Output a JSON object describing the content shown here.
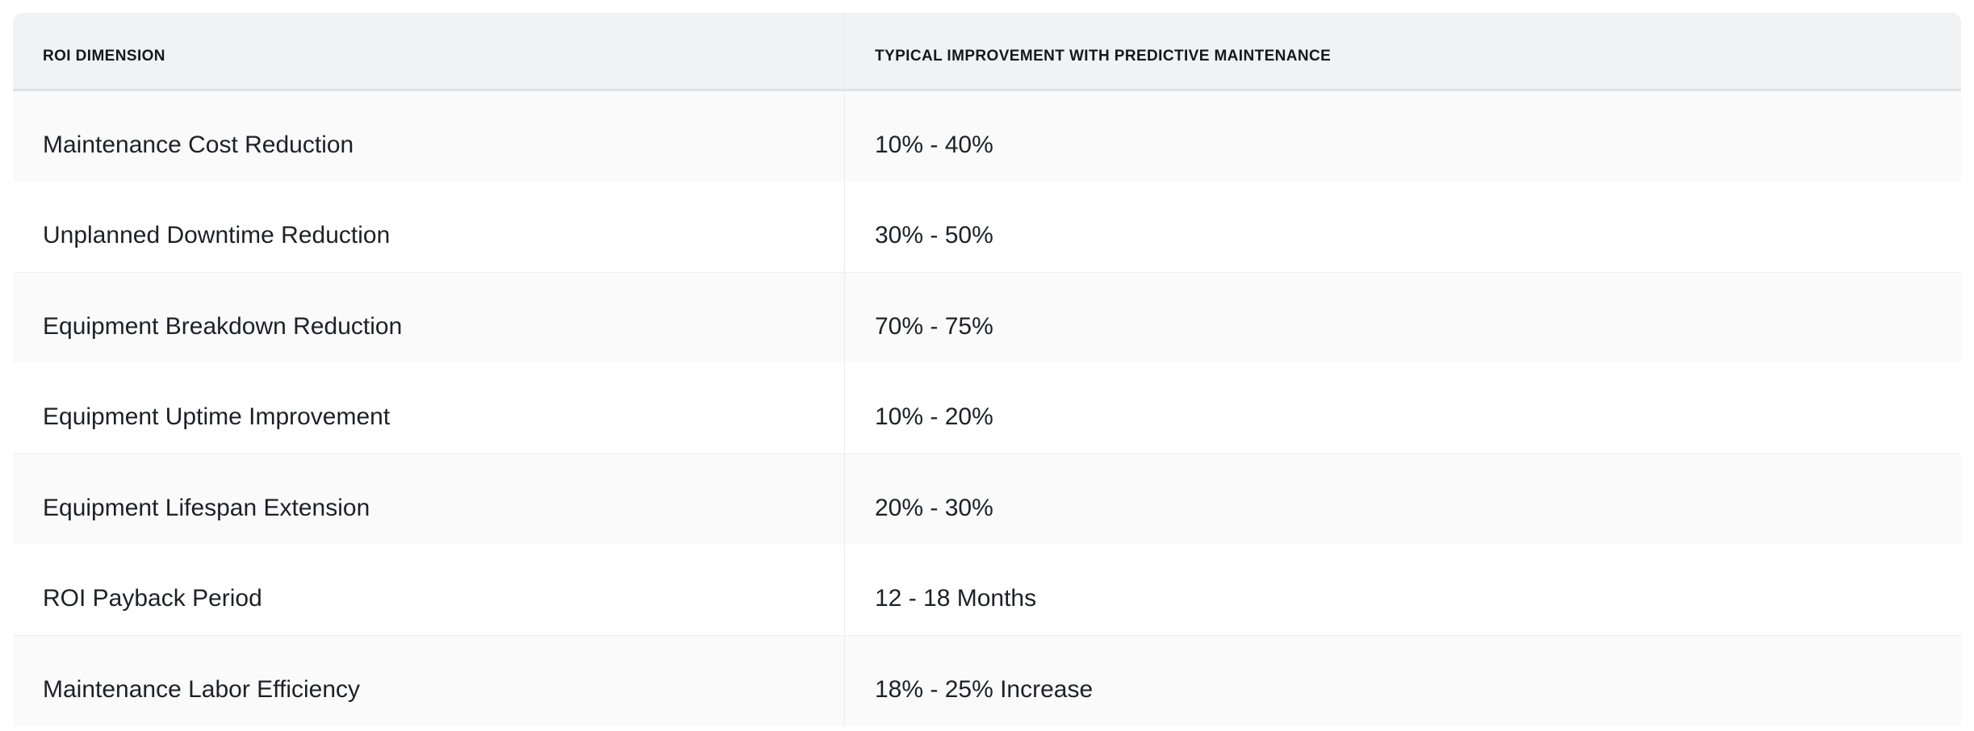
{
  "table": {
    "columns": [
      {
        "id": "dimension",
        "label": "ROI DIMENSION"
      },
      {
        "id": "improvement",
        "label": "TYPICAL IMPROVEMENT WITH PREDICTIVE MAINTENANCE"
      }
    ],
    "rows": [
      {
        "dimension": "Maintenance Cost Reduction",
        "improvement": "10% - 40%"
      },
      {
        "dimension": "Unplanned Downtime Reduction",
        "improvement": "30% - 50%"
      },
      {
        "dimension": "Equipment Breakdown Reduction",
        "improvement": "70% - 75%"
      },
      {
        "dimension": "Equipment Uptime Improvement",
        "improvement": "10% - 20%"
      },
      {
        "dimension": "Equipment Lifespan Extension",
        "improvement": "20% - 30%"
      },
      {
        "dimension": "ROI Payback Period",
        "improvement": "12 - 18 Months"
      },
      {
        "dimension": "Maintenance Labor Efficiency",
        "improvement": "18% - 25% Increase"
      }
    ]
  },
  "colors": {
    "page_bg": "#FFFFFF",
    "header_bg": "#F1F2F4",
    "header_text": "#16181C",
    "header_border": "#DFE2E7",
    "row_stripe_bg": "#FAFAFB",
    "row_white_bg": "#FFFFFF",
    "row_border": "#ECEEF1",
    "column_divider": "#E9EBEE",
    "body_text": "#1D2126"
  },
  "chart_data": {
    "type": "table",
    "title": "",
    "columns": [
      "ROI DIMENSION",
      "TYPICAL IMPROVEMENT WITH PREDICTIVE MAINTENANCE"
    ],
    "rows": [
      [
        "Maintenance Cost Reduction",
        "10% - 40%"
      ],
      [
        "Unplanned Downtime Reduction",
        "30% - 50%"
      ],
      [
        "Equipment Breakdown Reduction",
        "70% - 75%"
      ],
      [
        "Equipment Uptime Improvement",
        "10% - 20%"
      ],
      [
        "Equipment Lifespan Extension",
        "20% - 30%"
      ],
      [
        "ROI Payback Period",
        "12 - 18 Months"
      ],
      [
        "Maintenance Labor Efficiency",
        "18% - 25% Increase"
      ]
    ]
  }
}
